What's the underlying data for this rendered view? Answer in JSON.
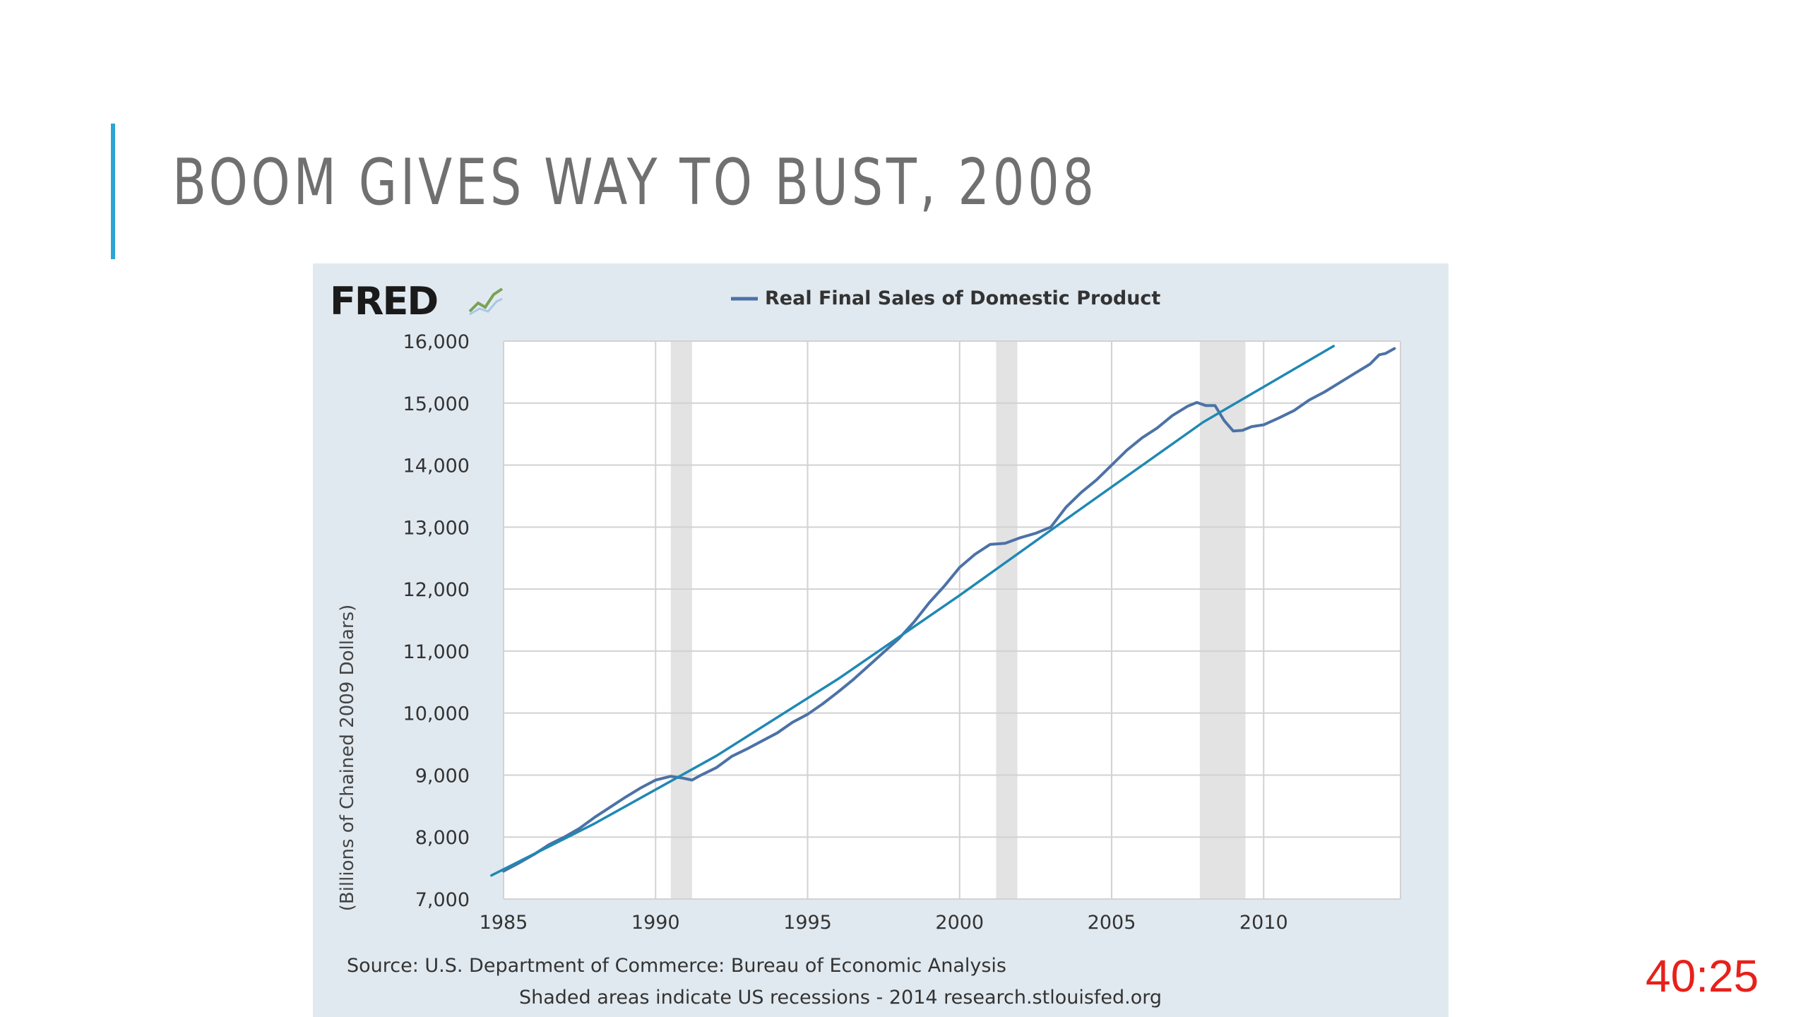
{
  "slide": {
    "title": "BOOM GIVES WAY TO BUST, 2008",
    "timer": "40:25",
    "accent_color": "#2ea3d6"
  },
  "fred": {
    "logo_text": "FRED",
    "logo_icon": "line-chart-icon",
    "source_note": "Source: U.S. Department of Commerce: Bureau of Economic Analysis",
    "shading_note": "Shaded areas indicate US recessions - 2014 research.stlouisfed.org"
  },
  "chart_data": {
    "type": "line",
    "title": "",
    "xlabel": "",
    "ylabel": "(Billions of Chained 2009 Dollars)",
    "xlim": [
      1985,
      2014.5
    ],
    "ylim": [
      7000,
      16000
    ],
    "x_ticks": [
      1985,
      1990,
      1995,
      2000,
      2005,
      2010
    ],
    "y_ticks": [
      7000,
      8000,
      9000,
      10000,
      11000,
      12000,
      13000,
      14000,
      15000,
      16000
    ],
    "x_tick_labels": [
      "1985",
      "1990",
      "1995",
      "2000",
      "2005",
      "2010"
    ],
    "y_tick_labels": [
      "7,000",
      "8,000",
      "9,000",
      "10,000",
      "11,000",
      "12,000",
      "13,000",
      "14,000",
      "15,000",
      "16,000"
    ],
    "grid": true,
    "legend_position": "top-center",
    "recessions": [
      [
        1990.5,
        1991.2
      ],
      [
        2001.2,
        2001.9
      ],
      [
        2007.9,
        2009.4
      ]
    ],
    "series": [
      {
        "name": "Real Final Sales of Domestic Product",
        "color": "#4c72a6",
        "x": [
          1985,
          1985.5,
          1986,
          1986.5,
          1987,
          1987.5,
          1988,
          1988.5,
          1989,
          1989.5,
          1990,
          1990.5,
          1990.9,
          1991.2,
          1991.5,
          1992,
          1992.5,
          1993,
          1993.5,
          1994,
          1994.5,
          1995,
          1995.5,
          1996,
          1996.5,
          1997,
          1997.5,
          1998,
          1998.5,
          1999,
          1999.5,
          2000,
          2000.5,
          2001,
          2001.5,
          2002,
          2002.5,
          2003,
          2003.5,
          2004,
          2004.5,
          2005,
          2005.5,
          2006,
          2006.5,
          2007,
          2007.5,
          2007.8,
          2008.1,
          2008.4,
          2008.7,
          2009,
          2009.3,
          2009.6,
          2010,
          2010.5,
          2011,
          2011.5,
          2012,
          2012.5,
          2013,
          2013.5,
          2013.8,
          2014,
          2014.3
        ],
        "values": [
          7450,
          7580,
          7720,
          7880,
          8000,
          8140,
          8320,
          8480,
          8640,
          8790,
          8920,
          8980,
          8950,
          8920,
          9000,
          9120,
          9300,
          9420,
          9550,
          9680,
          9850,
          9980,
          10150,
          10340,
          10540,
          10760,
          10980,
          11200,
          11470,
          11780,
          12050,
          12350,
          12560,
          12720,
          12740,
          12830,
          12900,
          13000,
          13320,
          13560,
          13760,
          14000,
          14240,
          14440,
          14600,
          14800,
          14950,
          15010,
          14960,
          14960,
          14720,
          14550,
          14560,
          14620,
          14650,
          14760,
          14880,
          15050,
          15180,
          15330,
          15480,
          15630,
          15780,
          15800,
          15880
        ]
      },
      {
        "name": "",
        "color": "#1f88b4",
        "x": [
          1984.6,
          1988,
          1992,
          1996,
          2000,
          2004,
          2008,
          2012.3
        ],
        "values": [
          7380,
          8220,
          9310,
          10550,
          11900,
          13300,
          14690,
          15920
        ]
      }
    ]
  }
}
